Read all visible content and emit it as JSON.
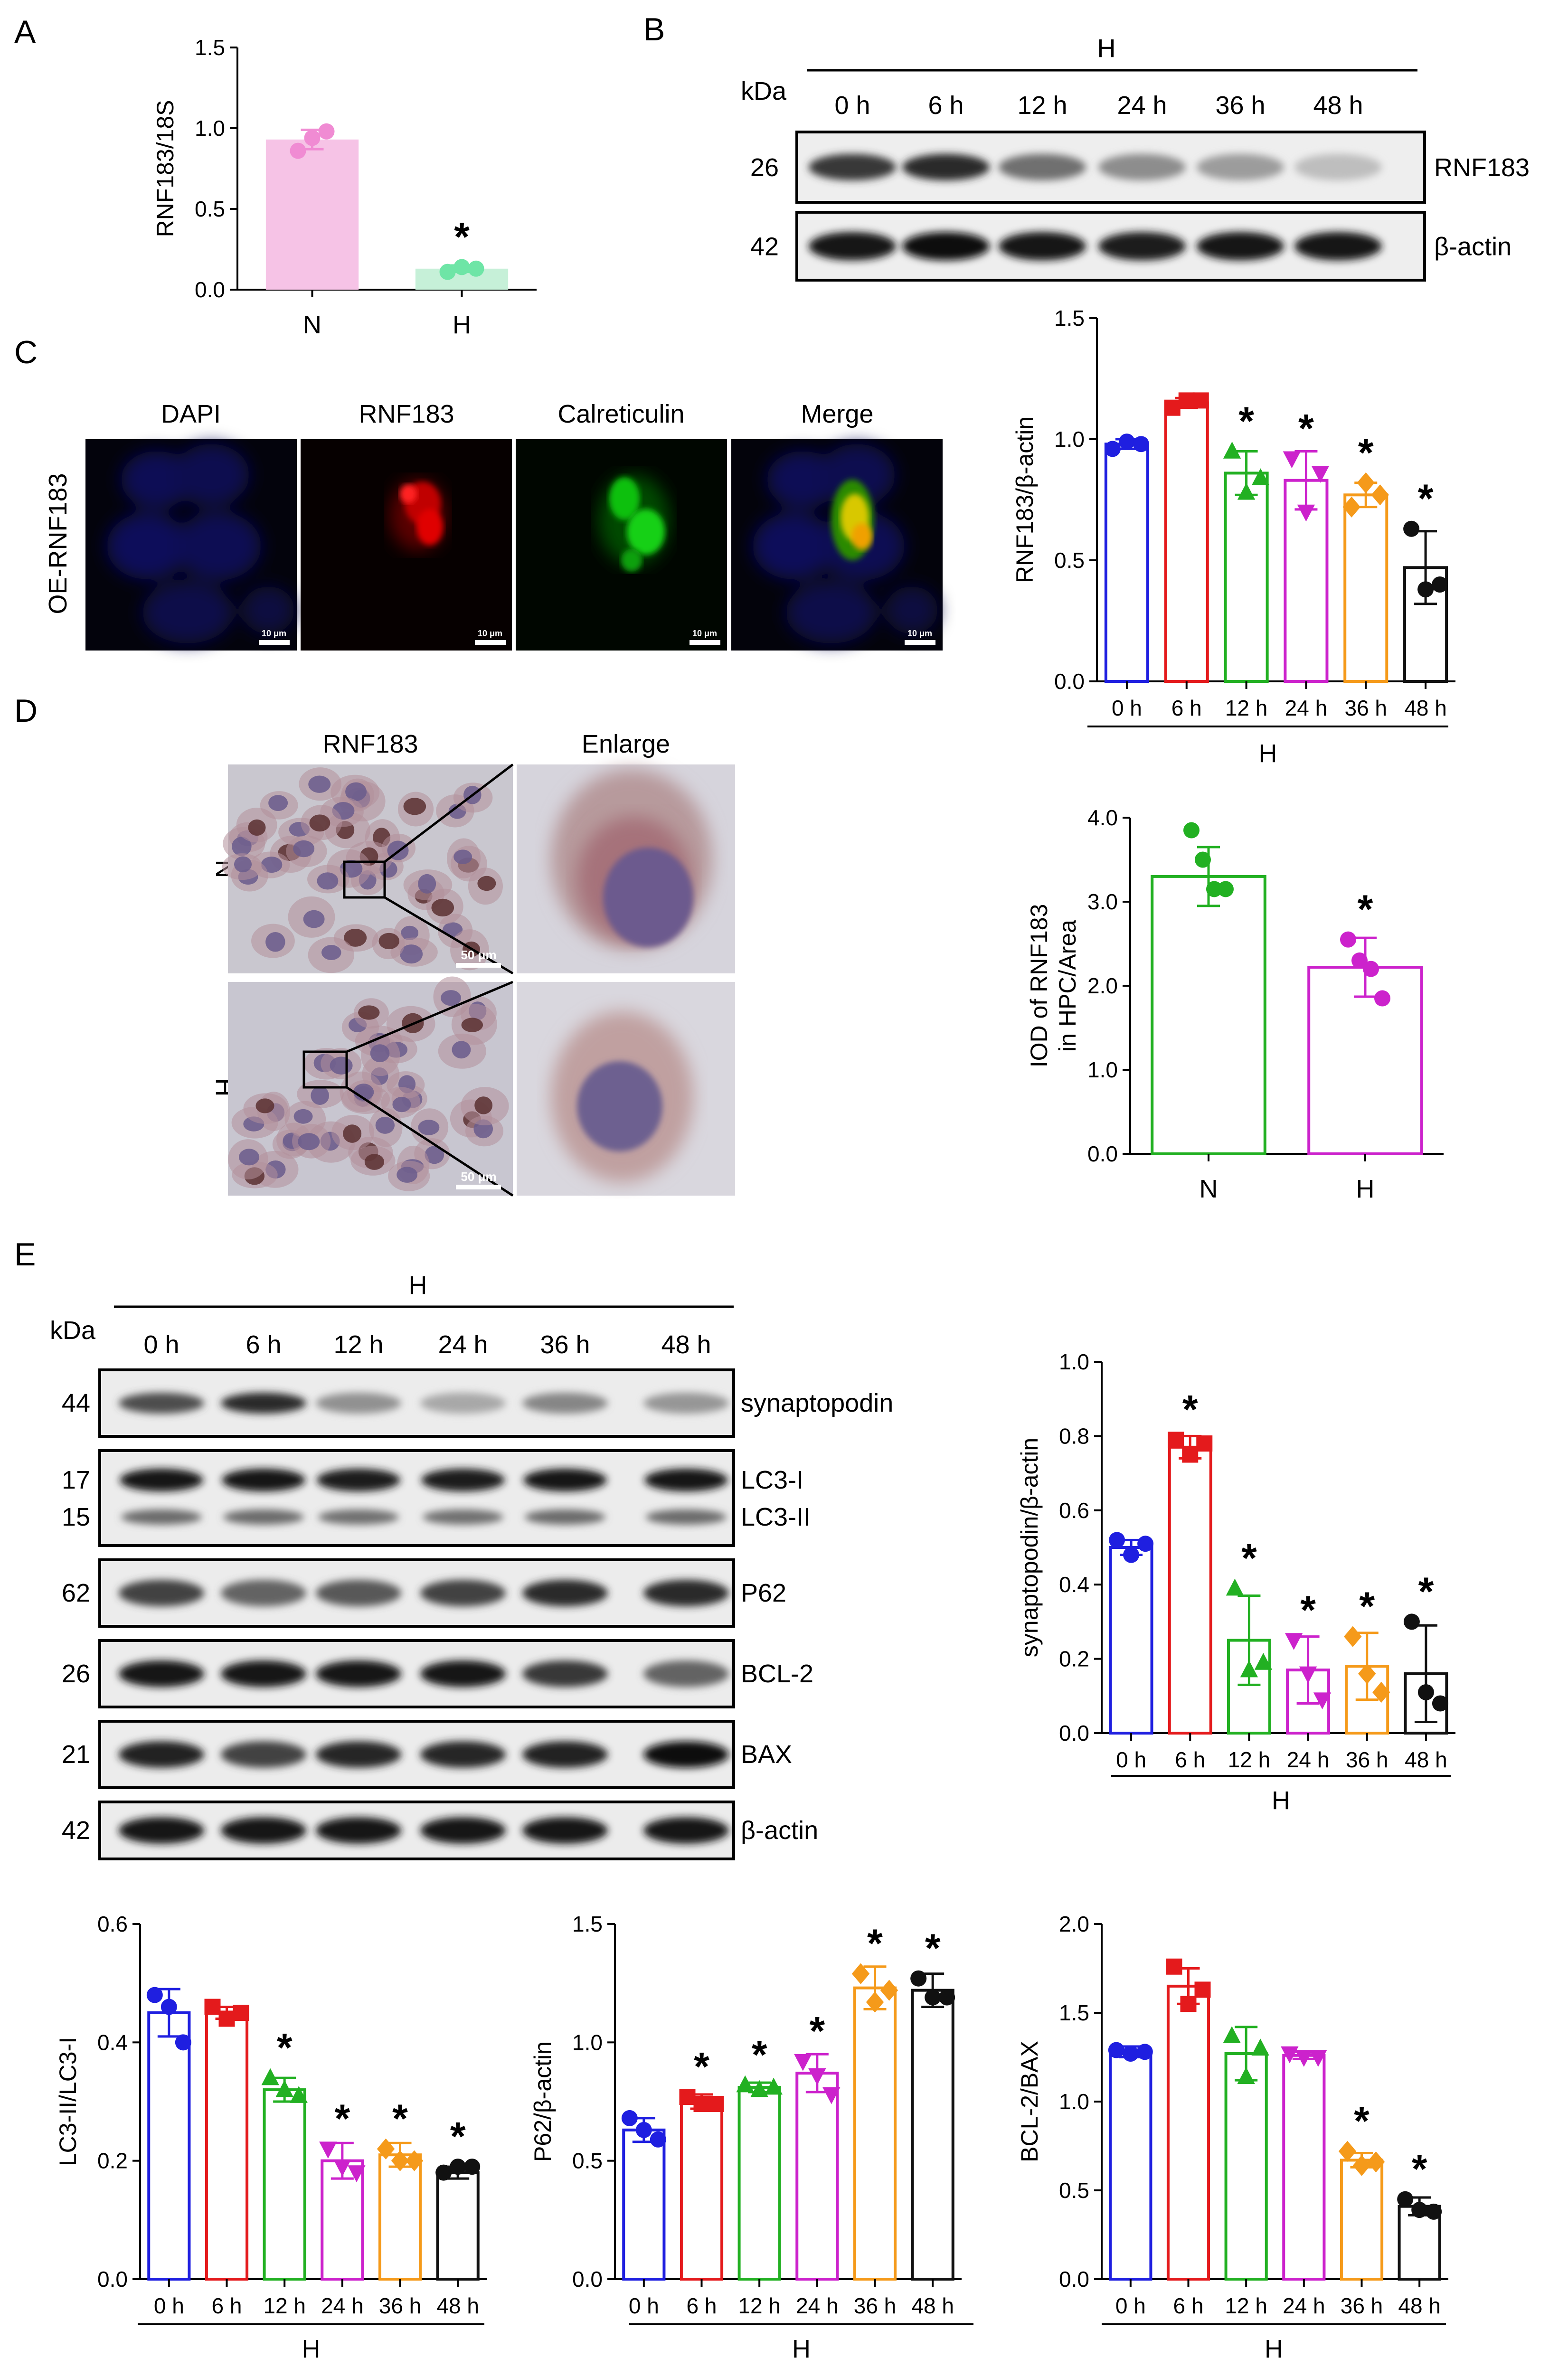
{
  "colors": {
    "blue": "#1f1fe0",
    "red": "#e41a1c",
    "green": "#22b022",
    "magenta": "#cc22cc",
    "orange": "#f59a1a",
    "black": "#111111",
    "pink_fill": "#f6c3e6",
    "pink_pt": "#f08bd3",
    "mint_fill": "#c6f0d8",
    "mint_pt": "#6ee5a6"
  },
  "panel_labels": [
    "A",
    "B",
    "C",
    "D",
    "E"
  ],
  "charts": {
    "A": {
      "title": "",
      "ylabel": "RNF183/18S",
      "group_label": "",
      "categories": [
        "N",
        "H"
      ],
      "yticks": [
        "0.0",
        "0.5",
        "1.0",
        "1.5"
      ],
      "colors": [
        "#f6c3e6",
        "#c6f0d8"
      ],
      "point_colors": [
        "#f08bd3",
        "#6ee5a6"
      ],
      "filled_bars": true,
      "stars": [
        "",
        "*"
      ]
    },
    "B": {
      "title": "",
      "ylabel": "RNF183/β-actin",
      "group_label": "H",
      "categories": [
        "0 h",
        "6 h",
        "12 h",
        "24 h",
        "36 h",
        "48 h"
      ],
      "yticks": [
        "0.0",
        "0.5",
        "1.0",
        "1.5"
      ],
      "colors": [
        "#1f1fe0",
        "#e41a1c",
        "#22b022",
        "#cc22cc",
        "#f59a1a",
        "#111111"
      ],
      "stars": [
        "",
        "",
        "*",
        "*",
        "*",
        "*"
      ]
    },
    "D": {
      "title": "",
      "ylabel": "IOD of RNF183",
      "ylabel2": "in HPC/Area",
      "group_label": "",
      "categories": [
        "N",
        "H"
      ],
      "yticks": [
        "0.0",
        "1.0",
        "2.0",
        "3.0",
        "4.0"
      ],
      "colors": [
        "#22b022",
        "#cc22cc"
      ],
      "stars": [
        "",
        "*"
      ]
    },
    "E1": {
      "title": "",
      "ylabel": "synaptopodin/β-actin",
      "group_label": "H",
      "categories": [
        "0 h",
        "6 h",
        "12 h",
        "24 h",
        "36 h",
        "48 h"
      ],
      "yticks": [
        "0.0",
        "0.2",
        "0.4",
        "0.6",
        "0.8",
        "1.0"
      ],
      "colors": [
        "#1f1fe0",
        "#e41a1c",
        "#22b022",
        "#cc22cc",
        "#f59a1a",
        "#111111"
      ],
      "stars": [
        "",
        "*",
        "*",
        "*",
        "*",
        "*"
      ]
    },
    "E2": {
      "title": "",
      "ylabel": "LC3-II/LC3-I",
      "group_label": "H",
      "categories": [
        "0 h",
        "6 h",
        "12 h",
        "24 h",
        "36 h",
        "48 h"
      ],
      "yticks": [
        "0.0",
        "0.2",
        "0.4",
        "0.6"
      ],
      "colors": [
        "#1f1fe0",
        "#e41a1c",
        "#22b022",
        "#cc22cc",
        "#f59a1a",
        "#111111"
      ],
      "stars": [
        "",
        "",
        "*",
        "*",
        "*",
        "*"
      ]
    },
    "E3": {
      "title": "",
      "ylabel": "P62/β-actin",
      "group_label": "H",
      "categories": [
        "0 h",
        "6 h",
        "12 h",
        "24 h",
        "36 h",
        "48 h"
      ],
      "yticks": [
        "0.0",
        "0.5",
        "1.0",
        "1.5"
      ],
      "colors": [
        "#1f1fe0",
        "#e41a1c",
        "#22b022",
        "#cc22cc",
        "#f59a1a",
        "#111111"
      ],
      "stars": [
        "",
        "*",
        "*",
        "*",
        "*",
        "*"
      ]
    },
    "E4": {
      "title": "",
      "ylabel": "BCL-2/BAX",
      "group_label": "H",
      "categories": [
        "0 h",
        "6 h",
        "12 h",
        "24 h",
        "36 h",
        "48 h"
      ],
      "yticks": [
        "0.0",
        "0.5",
        "1.0",
        "1.5",
        "2.0"
      ],
      "colors": [
        "#1f1fe0",
        "#e41a1c",
        "#22b022",
        "#cc22cc",
        "#f59a1a",
        "#111111"
      ],
      "stars": [
        "",
        "",
        "",
        "",
        "*",
        "*"
      ]
    }
  },
  "chart_data": [
    {
      "type": "bar",
      "id": "A",
      "ylabel": "RNF183/18S",
      "categories": [
        "N",
        "H"
      ],
      "ylim": [
        0,
        1.5
      ],
      "values": [
        0.93,
        0.13
      ],
      "errors": [
        0.06,
        0.02
      ],
      "points": [
        [
          0.86,
          0.94,
          0.98
        ],
        [
          0.11,
          0.14,
          0.13
        ]
      ]
    },
    {
      "type": "bar",
      "id": "B",
      "ylabel": "RNF183/β-actin",
      "xlabel": "H",
      "categories": [
        "0 h",
        "6 h",
        "12 h",
        "24 h",
        "36 h",
        "48 h"
      ],
      "ylim": [
        0,
        1.5
      ],
      "values": [
        0.98,
        1.15,
        0.86,
        0.83,
        0.77,
        0.47
      ],
      "errors": [
        0.02,
        0.02,
        0.09,
        0.12,
        0.05,
        0.15
      ],
      "points": [
        [
          0.96,
          0.99,
          0.98
        ],
        [
          1.13,
          1.16,
          1.16
        ],
        [
          0.95,
          0.78,
          0.84
        ],
        [
          0.92,
          0.7,
          0.86
        ],
        [
          0.72,
          0.82,
          0.77
        ],
        [
          0.63,
          0.38,
          0.4
        ]
      ]
    },
    {
      "type": "bar",
      "id": "D",
      "ylabel": "IOD of RNF183 in HPC/Area",
      "categories": [
        "N",
        "H"
      ],
      "ylim": [
        0,
        4.0
      ],
      "values": [
        3.3,
        2.22
      ],
      "errors": [
        0.35,
        0.35
      ],
      "points": [
        [
          3.85,
          3.5,
          3.15,
          3.15
        ],
        [
          2.55,
          2.3,
          2.2,
          1.85
        ]
      ]
    },
    {
      "type": "bar",
      "id": "E1",
      "ylabel": "synaptopodin/β-actin",
      "xlabel": "H",
      "categories": [
        "0 h",
        "6 h",
        "12 h",
        "24 h",
        "36 h",
        "48 h"
      ],
      "ylim": [
        0,
        1.0
      ],
      "values": [
        0.5,
        0.77,
        0.25,
        0.17,
        0.18,
        0.16
      ],
      "errors": [
        0.02,
        0.03,
        0.12,
        0.09,
        0.09,
        0.13
      ],
      "points": [
        [
          0.52,
          0.48,
          0.51
        ],
        [
          0.79,
          0.75,
          0.78
        ],
        [
          0.39,
          0.17,
          0.19
        ],
        [
          0.25,
          0.16,
          0.09
        ],
        [
          0.26,
          0.16,
          0.11
        ],
        [
          0.3,
          0.11,
          0.08
        ]
      ]
    },
    {
      "type": "bar",
      "id": "E2",
      "ylabel": "LC3-II/LC3-I",
      "xlabel": "H",
      "categories": [
        "0 h",
        "6 h",
        "12 h",
        "24 h",
        "36 h",
        "48 h"
      ],
      "ylim": [
        0,
        0.6
      ],
      "values": [
        0.45,
        0.45,
        0.32,
        0.2,
        0.21,
        0.18
      ],
      "errors": [
        0.04,
        0.01,
        0.02,
        0.03,
        0.02,
        0.01
      ],
      "points": [
        [
          0.48,
          0.46,
          0.4
        ],
        [
          0.46,
          0.44,
          0.45
        ],
        [
          0.34,
          0.32,
          0.31
        ],
        [
          0.22,
          0.19,
          0.18
        ],
        [
          0.22,
          0.2,
          0.2
        ],
        [
          0.18,
          0.19,
          0.19
        ]
      ]
    },
    {
      "type": "bar",
      "id": "E3",
      "ylabel": "P62/β-actin",
      "xlabel": "H",
      "categories": [
        "0 h",
        "6 h",
        "12 h",
        "24 h",
        "36 h",
        "48 h"
      ],
      "ylim": [
        0,
        1.5
      ],
      "values": [
        0.63,
        0.75,
        0.81,
        0.87,
        1.23,
        1.22
      ],
      "errors": [
        0.05,
        0.03,
        0.02,
        0.08,
        0.09,
        0.07
      ],
      "points": [
        [
          0.68,
          0.63,
          0.59
        ],
        [
          0.77,
          0.74,
          0.74
        ],
        [
          0.82,
          0.8,
          0.81
        ],
        [
          0.92,
          0.86,
          0.78
        ],
        [
          1.29,
          1.17,
          1.22
        ],
        [
          1.27,
          1.19,
          1.19
        ]
      ]
    },
    {
      "type": "bar",
      "id": "E4",
      "ylabel": "BCL-2/BAX",
      "xlabel": "H",
      "categories": [
        "0 h",
        "6 h",
        "12 h",
        "24 h",
        "36 h",
        "48 h"
      ],
      "ylim": [
        0,
        2.0
      ],
      "values": [
        1.28,
        1.65,
        1.27,
        1.26,
        0.67,
        0.41
      ],
      "errors": [
        0.03,
        0.1,
        0.15,
        0.02,
        0.04,
        0.05
      ],
      "points": [
        [
          1.29,
          1.27,
          1.28
        ],
        [
          1.76,
          1.55,
          1.63
        ],
        [
          1.37,
          1.14,
          1.3
        ],
        [
          1.27,
          1.25,
          1.25
        ],
        [
          0.72,
          0.64,
          0.66
        ],
        [
          0.45,
          0.39,
          0.38
        ]
      ]
    }
  ],
  "blotB": {
    "kda": "kDa",
    "group": "H",
    "lanes": [
      "0 h",
      "6 h",
      "12 h",
      "24 h",
      "36 h",
      "48 h"
    ],
    "rows": [
      {
        "size": "26",
        "name": "RNF183",
        "intensity": [
          0.8,
          0.85,
          0.55,
          0.42,
          0.35,
          0.2
        ]
      },
      {
        "size": "42",
        "name": "β-actin",
        "intensity": [
          0.95,
          0.97,
          0.95,
          0.93,
          0.95,
          0.95
        ]
      }
    ]
  },
  "blotE": {
    "kda": "kDa",
    "group": "H",
    "lanes": [
      "0 h",
      "6 h",
      "12 h",
      "24 h",
      "36 h",
      "48 h"
    ],
    "rows": [
      {
        "sizes": [
          "44"
        ],
        "names": [
          "synaptopodin"
        ],
        "intensity": [
          0.7,
          0.85,
          0.4,
          0.3,
          0.45,
          0.38
        ]
      },
      {
        "sizes": [
          "17",
          "15"
        ],
        "names": [
          "LC3-I",
          "LC3-II"
        ],
        "intensity": [
          0.95,
          0.95,
          0.92,
          0.92,
          0.95,
          0.95
        ]
      },
      {
        "sizes": [
          "62"
        ],
        "names": [
          "P62"
        ],
        "intensity": [
          0.75,
          0.6,
          0.65,
          0.75,
          0.85,
          0.85
        ]
      },
      {
        "sizes": [
          "26"
        ],
        "names": [
          "BCL-2"
        ],
        "intensity": [
          0.95,
          0.95,
          0.95,
          0.95,
          0.8,
          0.6
        ]
      },
      {
        "sizes": [
          "21"
        ],
        "names": [
          "BAX"
        ],
        "intensity": [
          0.9,
          0.75,
          0.88,
          0.88,
          0.9,
          0.97
        ]
      },
      {
        "sizes": [
          "42"
        ],
        "names": [
          "β-actin"
        ],
        "intensity": [
          0.95,
          0.95,
          0.95,
          0.95,
          0.95,
          0.95
        ]
      }
    ]
  },
  "panelC": {
    "row_label": "OE-RNF183",
    "titles": [
      "DAPI",
      "RNF183",
      "Calreticulin",
      "Merge"
    ],
    "scale": "10 μm"
  },
  "panelD": {
    "titles": [
      "RNF183",
      "Enlarge"
    ],
    "rows": [
      "N",
      "H"
    ],
    "scale": "50 μm"
  }
}
